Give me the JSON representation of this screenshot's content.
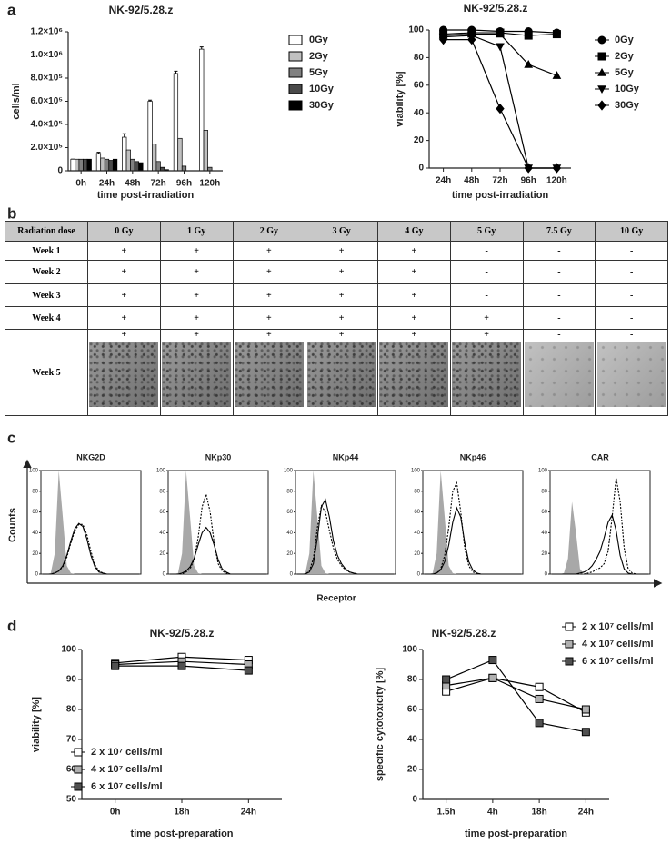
{
  "panel_labels": [
    "a",
    "b",
    "c",
    "d"
  ],
  "chart_data": [
    {
      "type": "bar",
      "title": "NK-92/5.28.z",
      "x_label": "time post-irradiation",
      "y_label": "cells/ml",
      "categories": [
        "0h",
        "24h",
        "48h",
        "72h",
        "96h",
        "120h"
      ],
      "series": [
        {
          "name": "0Gy",
          "color": "#ffffff",
          "values": [
            100000,
            150000,
            290000,
            600000,
            840000,
            1050000
          ],
          "errors": [
            0,
            10000,
            30000,
            10000,
            20000,
            20000
          ]
        },
        {
          "name": "2Gy",
          "color": "#c0c0c0",
          "values": [
            100000,
            110000,
            180000,
            230000,
            280000,
            350000
          ]
        },
        {
          "name": "5Gy",
          "color": "#808080",
          "values": [
            100000,
            100000,
            100000,
            80000,
            40000,
            30000
          ]
        },
        {
          "name": "10Gy",
          "color": "#4a4a4a",
          "values": [
            100000,
            90000,
            80000,
            30000,
            0,
            0
          ]
        },
        {
          "name": "30Gy",
          "color": "#000000",
          "values": [
            100000,
            100000,
            70000,
            10000,
            0,
            0
          ]
        }
      ],
      "ylim": [
        0,
        1200000
      ],
      "yticks": [
        0,
        {
          "value": 200000,
          "label": "2.0×10⁵"
        },
        {
          "value": 400000,
          "label": "4.0×10⁵"
        },
        {
          "value": 600000,
          "label": "6.0×10⁵"
        },
        {
          "value": 800000,
          "label": "8.0×10⁵"
        },
        {
          "value": 1000000,
          "label": "1.0×10⁶"
        },
        {
          "value": 1200000,
          "label": "1.2×10⁶"
        }
      ]
    },
    {
      "type": "line",
      "title": "NK-92/5.28.z",
      "x_label": "time post-irradiation",
      "y_label": "viability [%]",
      "categories": [
        "24h",
        "48h",
        "72h",
        "96h",
        "120h"
      ],
      "series": [
        {
          "name": "0Gy",
          "color": "#000000",
          "marker": "circle",
          "values": [
            100,
            100,
            99,
            99,
            98
          ]
        },
        {
          "name": "2Gy",
          "color": "#000000",
          "marker": "square",
          "values": [
            97,
            98,
            98,
            96,
            97
          ]
        },
        {
          "name": "5Gy",
          "color": "#000000",
          "marker": "triangle",
          "values": [
            96,
            97,
            97,
            75,
            67
          ]
        },
        {
          "name": "10Gy",
          "color": "#000000",
          "marker": "triangle-down",
          "values": [
            95,
            96,
            88,
            0,
            0
          ]
        },
        {
          "name": "30Gy",
          "color": "#000000",
          "marker": "diamond",
          "values": [
            93,
            93,
            43,
            0,
            0
          ]
        }
      ],
      "ylim": [
        0,
        100
      ],
      "yticks": [
        0,
        20,
        40,
        60,
        80,
        100
      ]
    },
    {
      "type": "density",
      "title": "NKG2D",
      "ylim": [
        0,
        100
      ],
      "yticks": [
        0,
        20,
        40,
        60,
        80,
        100
      ],
      "series": [
        {
          "color": "#a8a8a8",
          "fill": true,
          "values": [
            0,
            0,
            1,
            20,
            100,
            55,
            8,
            1,
            0,
            0,
            0,
            0,
            0,
            0,
            0,
            0,
            0,
            0,
            0,
            0,
            0,
            0,
            0,
            0,
            0
          ]
        },
        {
          "color": "#000000",
          "dash": false,
          "values": [
            0,
            0,
            0,
            1,
            3,
            8,
            18,
            32,
            44,
            49,
            46,
            34,
            18,
            7,
            2,
            1,
            0,
            0,
            0,
            0,
            0,
            0,
            0,
            0,
            0
          ]
        },
        {
          "color": "#000000",
          "dash": true,
          "values": [
            0,
            0,
            0,
            1,
            3,
            7,
            16,
            30,
            42,
            48,
            48,
            38,
            22,
            9,
            3,
            1,
            0,
            0,
            0,
            0,
            0,
            0,
            0,
            0,
            0
          ]
        }
      ]
    },
    {
      "type": "density",
      "title": "NKp30",
      "ylim": [
        0,
        100
      ],
      "yticks": [
        0,
        20,
        40,
        60,
        80,
        100
      ],
      "series": [
        {
          "color": "#a8a8a8",
          "fill": true,
          "values": [
            0,
            0,
            1,
            20,
            100,
            55,
            8,
            1,
            0,
            0,
            0,
            0,
            0,
            0,
            0,
            0,
            0,
            0,
            0,
            0,
            0,
            0,
            0,
            0,
            0
          ]
        },
        {
          "color": "#000000",
          "dash": false,
          "values": [
            0,
            0,
            0,
            1,
            3,
            7,
            15,
            28,
            40,
            45,
            40,
            28,
            14,
            5,
            2,
            0,
            0,
            0,
            0,
            0,
            0,
            0,
            0,
            0,
            0
          ]
        },
        {
          "color": "#000000",
          "dash": true,
          "values": [
            0,
            0,
            0,
            0,
            2,
            5,
            14,
            35,
            65,
            77,
            60,
            30,
            10,
            3,
            1,
            0,
            0,
            0,
            0,
            0,
            0,
            0,
            0,
            0,
            0
          ]
        }
      ]
    },
    {
      "type": "density",
      "title": "NKp44",
      "ylim": [
        0,
        100
      ],
      "yticks": [
        0,
        20,
        40,
        60,
        80,
        100
      ],
      "series": [
        {
          "color": "#a8a8a8",
          "fill": true,
          "values": [
            0,
            0,
            1,
            20,
            100,
            55,
            8,
            1,
            0,
            0,
            0,
            0,
            0,
            0,
            0,
            0,
            0,
            0,
            0,
            0,
            0,
            0,
            0,
            0,
            0
          ]
        },
        {
          "color": "#000000",
          "dash": false,
          "values": [
            0,
            0,
            0,
            2,
            10,
            35,
            65,
            72,
            55,
            32,
            18,
            10,
            5,
            2,
            1,
            0,
            0,
            0,
            0,
            0,
            0,
            0,
            0,
            0,
            0
          ]
        },
        {
          "color": "#000000",
          "dash": true,
          "values": [
            0,
            0,
            0,
            3,
            15,
            45,
            66,
            60,
            42,
            25,
            14,
            8,
            4,
            2,
            1,
            0,
            0,
            0,
            0,
            0,
            0,
            0,
            0,
            0,
            0
          ]
        }
      ]
    },
    {
      "type": "density",
      "title": "NKp46",
      "ylim": [
        0,
        100
      ],
      "yticks": [
        0,
        20,
        40,
        60,
        80,
        100
      ],
      "series": [
        {
          "color": "#a8a8a8",
          "fill": true,
          "values": [
            0,
            0,
            1,
            20,
            100,
            55,
            8,
            1,
            0,
            0,
            0,
            0,
            0,
            0,
            0,
            0,
            0,
            0,
            0,
            0,
            0,
            0,
            0,
            0,
            0
          ]
        },
        {
          "color": "#000000",
          "dash": false,
          "values": [
            0,
            0,
            0,
            1,
            4,
            12,
            28,
            50,
            64,
            55,
            30,
            12,
            4,
            1,
            0,
            0,
            0,
            0,
            0,
            0,
            0,
            0,
            0,
            0,
            0
          ]
        },
        {
          "color": "#000000",
          "dash": true,
          "values": [
            0,
            0,
            0,
            1,
            5,
            18,
            45,
            80,
            88,
            60,
            25,
            8,
            2,
            1,
            0,
            0,
            0,
            0,
            0,
            0,
            0,
            0,
            0,
            0,
            0
          ]
        }
      ]
    },
    {
      "type": "density",
      "title": "CAR",
      "ylim": [
        0,
        100
      ],
      "yticks": [
        0,
        20,
        40,
        60,
        80,
        100
      ],
      "series": [
        {
          "color": "#a8a8a8",
          "fill": true,
          "values": [
            0,
            0,
            0,
            1,
            15,
            70,
            40,
            5,
            0,
            0,
            0,
            0,
            0,
            0,
            0,
            0,
            0,
            0,
            0,
            0,
            0,
            0,
            0,
            0,
            0
          ]
        },
        {
          "color": "#000000",
          "dash": false,
          "values": [
            0,
            0,
            0,
            0,
            0,
            0,
            0,
            1,
            2,
            4,
            8,
            14,
            22,
            35,
            50,
            57,
            42,
            18,
            5,
            1,
            0,
            0,
            0,
            0,
            0
          ]
        },
        {
          "color": "#000000",
          "dash": true,
          "values": [
            0,
            0,
            0,
            0,
            0,
            0,
            0,
            0,
            0,
            1,
            2,
            4,
            6,
            10,
            22,
            55,
            93,
            70,
            25,
            5,
            1,
            0,
            0,
            0,
            0
          ]
        }
      ]
    },
    {
      "type": "line",
      "title": "NK-92/5.28.z",
      "x_label": "time post-preparation",
      "y_label": "viability [%]",
      "categories": [
        "0h",
        "18h",
        "24h"
      ],
      "series": [
        {
          "name": "2 x 10⁷ cells/ml",
          "color": "#ffffff",
          "marker": "square",
          "values": [
            95.5,
            97.5,
            96.5
          ]
        },
        {
          "name": "4 x 10⁷ cells/ml",
          "color": "#b0b0b0",
          "marker": "square",
          "values": [
            95,
            96,
            95
          ]
        },
        {
          "name": "6 x 10⁷ cells/ml",
          "color": "#505050",
          "marker": "square",
          "values": [
            94.5,
            94.5,
            93
          ]
        }
      ],
      "ylim": [
        50,
        100
      ],
      "yticks": [
        50,
        60,
        70,
        80,
        90,
        100
      ]
    },
    {
      "type": "line",
      "title": "NK-92/5.28.z",
      "x_label": "time post-preparation",
      "y_label": "specific cytotoxicity [%]",
      "categories": [
        "1.5h",
        "4h",
        "18h",
        "24h"
      ],
      "series": [
        {
          "name": "2 x 10⁷ cells/ml",
          "color": "#ffffff",
          "marker": "square",
          "values": [
            72,
            81,
            75,
            58
          ]
        },
        {
          "name": "4 x 10⁷ cells/ml",
          "color": "#b0b0b0",
          "marker": "square",
          "values": [
            76,
            81,
            67,
            60
          ]
        },
        {
          "name": "6 x 10⁷ cells/ml",
          "color": "#505050",
          "marker": "square",
          "values": [
            80,
            93,
            51,
            45
          ]
        }
      ],
      "ylim": [
        0,
        100
      ],
      "yticks": [
        0,
        20,
        40,
        60,
        80,
        100
      ]
    }
  ],
  "flow_labels": {
    "y_label": "Counts",
    "x_label": "Receptor"
  },
  "table": {
    "header": [
      "Radiation dose",
      "0 Gy",
      "1 Gy",
      "2 Gy",
      "3 Gy",
      "4 Gy",
      "5 Gy",
      "7.5 Gy",
      "10 Gy"
    ],
    "rows": [
      [
        "Week 1",
        "+",
        "+",
        "+",
        "+",
        "+",
        "-",
        "-",
        "-"
      ],
      [
        "Week 2",
        "+",
        "+",
        "+",
        "+",
        "+",
        "-",
        "-",
        "-"
      ],
      [
        "Week 3",
        "+",
        "+",
        "+",
        "+",
        "+",
        "-",
        "-",
        "-"
      ],
      [
        "Week 4",
        "+",
        "+",
        "+",
        "+",
        "+",
        "+",
        "-",
        "-"
      ],
      [
        "Week 5",
        "+",
        "+",
        "+",
        "+",
        "+",
        "+",
        "-",
        "-"
      ]
    ]
  }
}
